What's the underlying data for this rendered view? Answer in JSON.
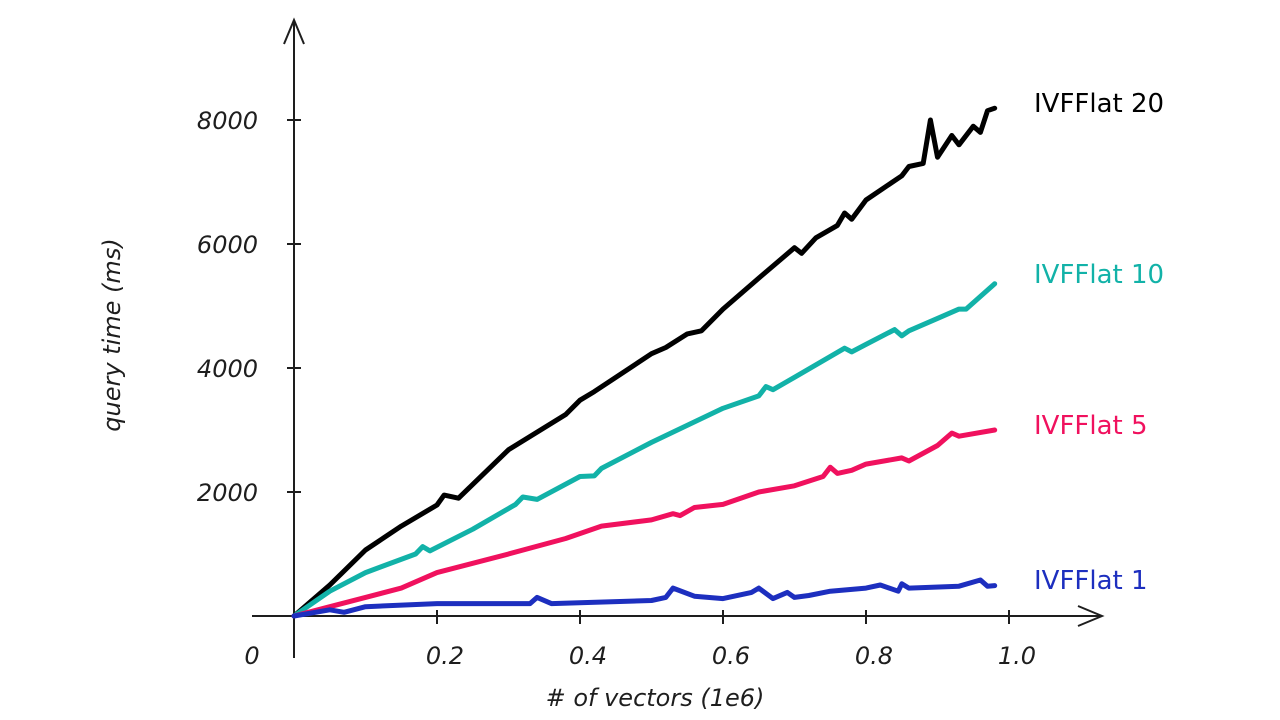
{
  "chart_data": {
    "type": "line",
    "title": "",
    "xlabel": "# of vectors (1e6)",
    "ylabel": "query time (ms)",
    "xlim": [
      0,
      1.13
    ],
    "ylim": [
      0,
      9600
    ],
    "origin_label": "0",
    "x_ticks": [
      0.2,
      0.4,
      0.6,
      0.8,
      1.0
    ],
    "x_tick_labels": [
      "0.2",
      "0.4",
      "0.6",
      "0.8",
      "1.0"
    ],
    "y_ticks": [
      2000,
      4000,
      6000,
      8000
    ],
    "y_tick_labels": [
      "2000",
      "4000",
      "6000",
      "8000"
    ],
    "grid": false,
    "legend": "labels at line ends (right)",
    "series": [
      {
        "name": "IVFFlat 20",
        "color": "#000000",
        "x": [
          0,
          0.05,
          0.1,
          0.15,
          0.2,
          0.21,
          0.23,
          0.3,
          0.38,
          0.4,
          0.42,
          0.5,
          0.52,
          0.55,
          0.57,
          0.6,
          0.65,
          0.7,
          0.71,
          0.73,
          0.76,
          0.77,
          0.78,
          0.8,
          0.85,
          0.86,
          0.88,
          0.89,
          0.9,
          0.92,
          0.93,
          0.95,
          0.96,
          0.97,
          0.98
        ],
        "y": [
          0,
          500,
          1065,
          1450,
          1790,
          1950,
          1900,
          2680,
          3250,
          3480,
          3620,
          4230,
          4330,
          4550,
          4600,
          4950,
          5450,
          5940,
          5850,
          6100,
          6300,
          6500,
          6400,
          6710,
          7100,
          7250,
          7300,
          8000,
          7400,
          7750,
          7600,
          7900,
          7800,
          8150,
          8190
        ]
      },
      {
        "name": "IVFFlat 10",
        "color": "#12b2a8",
        "x": [
          0,
          0.05,
          0.1,
          0.17,
          0.18,
          0.19,
          0.25,
          0.31,
          0.32,
          0.34,
          0.4,
          0.42,
          0.43,
          0.5,
          0.6,
          0.65,
          0.66,
          0.67,
          0.7,
          0.77,
          0.78,
          0.8,
          0.84,
          0.85,
          0.86,
          0.9,
          0.93,
          0.94,
          0.98
        ],
        "y": [
          0,
          400,
          700,
          1000,
          1120,
          1050,
          1400,
          1800,
          1920,
          1880,
          2250,
          2260,
          2380,
          2800,
          3350,
          3550,
          3700,
          3650,
          3850,
          4320,
          4260,
          4380,
          4620,
          4520,
          4600,
          4800,
          4950,
          4950,
          5360
        ]
      },
      {
        "name": "IVFFlat 5",
        "color": "#f0115e",
        "x": [
          0,
          0.05,
          0.1,
          0.15,
          0.2,
          0.3,
          0.38,
          0.43,
          0.5,
          0.53,
          0.54,
          0.56,
          0.6,
          0.65,
          0.7,
          0.74,
          0.75,
          0.76,
          0.78,
          0.8,
          0.85,
          0.86,
          0.9,
          0.92,
          0.93,
          0.98
        ],
        "y": [
          0,
          150,
          300,
          450,
          700,
          1000,
          1250,
          1450,
          1550,
          1650,
          1620,
          1750,
          1800,
          2000,
          2100,
          2250,
          2400,
          2300,
          2350,
          2450,
          2550,
          2500,
          2750,
          2950,
          2900,
          3000
        ]
      },
      {
        "name": "IVFFlat 1",
        "color": "#1d2fbf",
        "x": [
          0,
          0.05,
          0.07,
          0.1,
          0.2,
          0.33,
          0.34,
          0.36,
          0.5,
          0.52,
          0.53,
          0.56,
          0.6,
          0.64,
          0.65,
          0.67,
          0.69,
          0.7,
          0.72,
          0.75,
          0.8,
          0.82,
          0.845,
          0.85,
          0.86,
          0.93,
          0.96,
          0.97,
          0.98
        ],
        "y": [
          0,
          100,
          60,
          150,
          200,
          200,
          300,
          200,
          250,
          300,
          450,
          320,
          280,
          380,
          450,
          280,
          380,
          300,
          330,
          400,
          450,
          500,
          400,
          520,
          450,
          480,
          580,
          480,
          490
        ]
      }
    ]
  }
}
